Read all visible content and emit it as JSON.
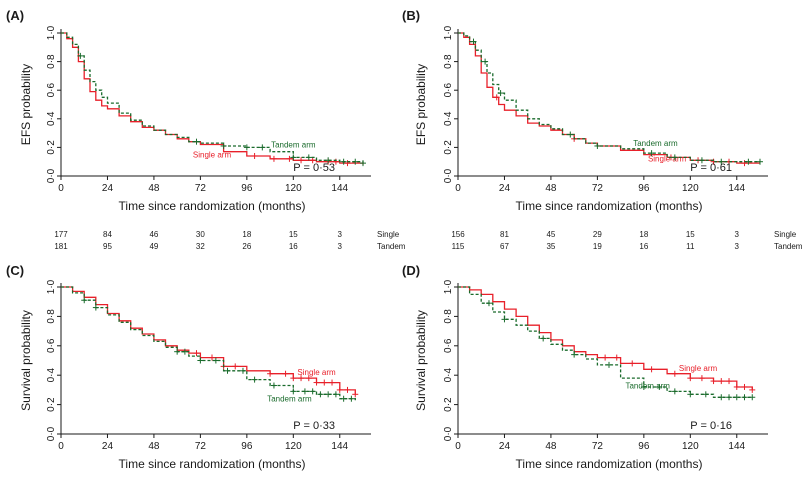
{
  "colors": {
    "single": "#e8202a",
    "tandem": "#1a6b2c",
    "axis": "#1a1a1a"
  },
  "chart_data": [
    {
      "panel": "(A)",
      "type": "line",
      "xlabel": "Time since randomization (months)",
      "ylabel": "EFS probability",
      "xlim": [
        0,
        156
      ],
      "ylim": [
        0,
        1
      ],
      "xticks": [
        "0",
        "24",
        "48",
        "72",
        "96",
        "120",
        "144"
      ],
      "yticks": [
        "0·0",
        "0·2",
        "0·4",
        "0·6",
        "0·8",
        "1·0"
      ],
      "p_value": "P = 0·53",
      "grid": false,
      "series": [
        {
          "name": "Single arm",
          "key": "single",
          "style": "solid",
          "label_pos": [
            78,
            0.13
          ],
          "x": [
            0,
            3,
            6,
            9,
            12,
            15,
            18,
            21,
            24,
            30,
            36,
            42,
            48,
            54,
            60,
            66,
            72,
            84,
            96,
            108,
            120,
            132,
            144,
            156
          ],
          "y": [
            1.0,
            0.96,
            0.9,
            0.8,
            0.68,
            0.59,
            0.53,
            0.49,
            0.47,
            0.42,
            0.38,
            0.34,
            0.32,
            0.29,
            0.26,
            0.24,
            0.22,
            0.17,
            0.14,
            0.12,
            0.11,
            0.1,
            0.09,
            0.08
          ],
          "censors": [
            100,
            110,
            118,
            124,
            130,
            138,
            142,
            148
          ]
        },
        {
          "name": "Tandem arm",
          "key": "tandem",
          "style": "dashed",
          "label_pos": [
            120,
            0.2
          ],
          "x": [
            0,
            3,
            6,
            9,
            12,
            15,
            18,
            21,
            24,
            30,
            36,
            42,
            48,
            54,
            60,
            66,
            72,
            84,
            96,
            108,
            120,
            132,
            144,
            156
          ],
          "y": [
            1.0,
            0.97,
            0.92,
            0.84,
            0.74,
            0.66,
            0.6,
            0.55,
            0.51,
            0.44,
            0.39,
            0.35,
            0.32,
            0.29,
            0.27,
            0.24,
            0.23,
            0.21,
            0.2,
            0.17,
            0.13,
            0.11,
            0.1,
            0.09
          ],
          "censors": [
            10,
            70,
            84,
            96,
            104,
            120,
            128,
            138,
            146,
            152,
            156
          ]
        }
      ],
      "risk_table": {
        "times": [
          "0",
          "24",
          "48",
          "72",
          "96",
          "120",
          "144"
        ],
        "rows": [
          {
            "label": "Single",
            "values": [
              "177",
              "84",
              "46",
              "30",
              "18",
              "15",
              "3"
            ]
          },
          {
            "label": "Tandem",
            "values": [
              "181",
              "95",
              "49",
              "32",
              "26",
              "16",
              "3"
            ]
          }
        ]
      }
    },
    {
      "panel": "(B)",
      "type": "line",
      "xlabel": "Time since randomization (months)",
      "ylabel": "EFS probability",
      "xlim": [
        0,
        156
      ],
      "ylim": [
        0,
        1
      ],
      "xticks": [
        "0",
        "24",
        "48",
        "72",
        "96",
        "120",
        "144"
      ],
      "yticks": [
        "0·0",
        "0·2",
        "0·4",
        "0·6",
        "0·8",
        "1·0"
      ],
      "p_value": "P = 0·61",
      "grid": false,
      "series": [
        {
          "name": "Single arm",
          "key": "single",
          "style": "solid",
          "label_pos": [
            108,
            0.1
          ],
          "x": [
            0,
            3,
            6,
            9,
            12,
            15,
            18,
            21,
            24,
            30,
            36,
            42,
            48,
            54,
            60,
            66,
            72,
            84,
            96,
            108,
            120,
            132,
            144,
            156
          ],
          "y": [
            1.0,
            0.97,
            0.92,
            0.84,
            0.72,
            0.62,
            0.55,
            0.5,
            0.46,
            0.42,
            0.37,
            0.35,
            0.32,
            0.29,
            0.26,
            0.23,
            0.21,
            0.18,
            0.15,
            0.13,
            0.11,
            0.1,
            0.09,
            0.09
          ],
          "censors": [
            20,
            60,
            110,
            124,
            132,
            140,
            148
          ]
        },
        {
          "name": "Tandem arm",
          "key": "tandem",
          "style": "dashed",
          "label_pos": [
            102,
            0.21
          ],
          "x": [
            0,
            3,
            6,
            9,
            12,
            15,
            18,
            21,
            24,
            30,
            36,
            42,
            48,
            54,
            60,
            66,
            72,
            84,
            96,
            108,
            120,
            132,
            144,
            156
          ],
          "y": [
            1.0,
            0.98,
            0.94,
            0.88,
            0.8,
            0.72,
            0.64,
            0.58,
            0.53,
            0.46,
            0.4,
            0.36,
            0.33,
            0.29,
            0.26,
            0.23,
            0.21,
            0.19,
            0.16,
            0.13,
            0.11,
            0.1,
            0.1,
            0.1
          ],
          "censors": [
            8,
            14,
            22,
            58,
            72,
            100,
            112,
            126,
            136,
            150,
            156
          ]
        }
      ],
      "risk_table": {
        "times": [
          "0",
          "24",
          "48",
          "72",
          "96",
          "120",
          "144"
        ],
        "rows": [
          {
            "label": "Single",
            "values": [
              "156",
              "81",
              "45",
              "29",
              "18",
              "15",
              "3"
            ]
          },
          {
            "label": "Tandem",
            "values": [
              "115",
              "67",
              "35",
              "19",
              "16",
              "11",
              "3"
            ]
          }
        ]
      }
    },
    {
      "panel": "(C)",
      "type": "line",
      "xlabel": "Time since randomization (months)",
      "ylabel": "Survival probability",
      "xlim": [
        0,
        156
      ],
      "ylim": [
        0,
        1
      ],
      "xticks": [
        "0",
        "24",
        "48",
        "72",
        "96",
        "120",
        "144"
      ],
      "yticks": [
        "0·0",
        "0·2",
        "0·4",
        "0·6",
        "0·8",
        "1·0"
      ],
      "p_value": "P = 0·33",
      "grid": false,
      "series": [
        {
          "name": "Single arm",
          "key": "single",
          "style": "solid",
          "label_pos": [
            132,
            0.4
          ],
          "x": [
            0,
            6,
            12,
            18,
            24,
            30,
            36,
            42,
            48,
            54,
            60,
            66,
            72,
            84,
            96,
            108,
            120,
            132,
            144,
            152
          ],
          "y": [
            1.0,
            0.97,
            0.93,
            0.88,
            0.82,
            0.77,
            0.72,
            0.68,
            0.64,
            0.6,
            0.57,
            0.55,
            0.52,
            0.46,
            0.43,
            0.41,
            0.38,
            0.35,
            0.3,
            0.27
          ],
          "censors": [
            70,
            78,
            84,
            90,
            108,
            116,
            120,
            124,
            128,
            132,
            136,
            140,
            144,
            148,
            152
          ]
        },
        {
          "name": "Tandem arm",
          "key": "tandem",
          "style": "dashed",
          "label_pos": [
            118,
            0.22
          ],
          "x": [
            0,
            6,
            12,
            18,
            24,
            30,
            36,
            42,
            48,
            54,
            60,
            66,
            72,
            84,
            96,
            108,
            120,
            132,
            144,
            152
          ],
          "y": [
            1.0,
            0.96,
            0.91,
            0.86,
            0.81,
            0.76,
            0.71,
            0.67,
            0.63,
            0.59,
            0.56,
            0.53,
            0.5,
            0.43,
            0.37,
            0.33,
            0.29,
            0.27,
            0.24,
            0.23
          ],
          "censors": [
            12,
            18,
            60,
            64,
            72,
            80,
            86,
            94,
            100,
            110,
            120,
            126,
            130,
            134,
            138,
            142,
            146,
            150
          ]
        }
      ],
      "risk_table": null
    },
    {
      "panel": "(D)",
      "type": "line",
      "xlabel": "Time since randomization (months)",
      "ylabel": "Survival probability",
      "xlim": [
        0,
        156
      ],
      "ylim": [
        0,
        1
      ],
      "xticks": [
        "0",
        "24",
        "48",
        "72",
        "96",
        "120",
        "144"
      ],
      "yticks": [
        "0·0",
        "0·2",
        "0·4",
        "0·6",
        "0·8",
        "1·0"
      ],
      "p_value": "P = 0·16",
      "grid": false,
      "series": [
        {
          "name": "Single arm",
          "key": "single",
          "style": "solid",
          "label_pos": [
            124,
            0.43
          ],
          "x": [
            0,
            6,
            12,
            18,
            24,
            30,
            36,
            42,
            48,
            54,
            60,
            66,
            72,
            84,
            96,
            108,
            120,
            132,
            144,
            152
          ],
          "y": [
            1.0,
            0.98,
            0.95,
            0.9,
            0.85,
            0.8,
            0.74,
            0.69,
            0.64,
            0.6,
            0.56,
            0.54,
            0.52,
            0.48,
            0.44,
            0.41,
            0.38,
            0.36,
            0.32,
            0.3
          ],
          "censors": [
            76,
            82,
            90,
            100,
            112,
            120,
            126,
            132,
            136,
            140,
            144,
            148,
            152
          ]
        },
        {
          "name": "Tandem arm",
          "key": "tandem",
          "style": "dashed",
          "label_pos": [
            98,
            0.31
          ],
          "x": [
            0,
            6,
            12,
            18,
            24,
            30,
            36,
            42,
            48,
            54,
            60,
            66,
            72,
            84,
            96,
            108,
            120,
            132,
            144,
            152
          ],
          "y": [
            1.0,
            0.95,
            0.89,
            0.83,
            0.78,
            0.74,
            0.7,
            0.65,
            0.61,
            0.57,
            0.54,
            0.51,
            0.47,
            0.38,
            0.32,
            0.29,
            0.27,
            0.25,
            0.25,
            0.25
          ],
          "censors": [
            16,
            24,
            44,
            60,
            78,
            96,
            104,
            112,
            120,
            128,
            136,
            140,
            144,
            148,
            152
          ]
        }
      ],
      "risk_table": null
    }
  ]
}
